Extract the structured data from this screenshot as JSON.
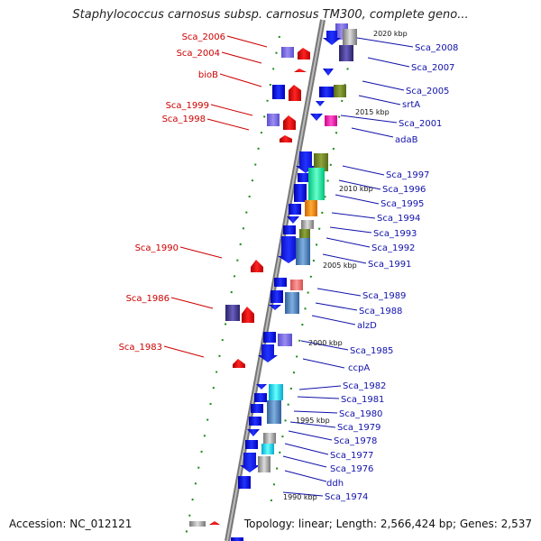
{
  "title": "Staphylococcus carnosus subsp. carnosus TM300, complete geno...",
  "footer": {
    "accession": "Accession: NC_012121",
    "summary": "Topology: linear; Length: 2,566,424 bp; Genes: 2,537"
  },
  "colors": {
    "axis": "#999999",
    "left_label": "#cc0000",
    "right_label": "#1111aa",
    "tick": "#1a8a1a"
  },
  "kbp_markers": [
    "2020 kbp",
    "2015 kbp",
    "2010 kbp",
    "2005 kbp",
    "2000 kbp",
    "1995 kbp",
    "1990 kbp"
  ],
  "left_genes": [
    "Sca_2006",
    "Sca_2004",
    "bioB",
    "Sca_1999",
    "Sca_1998",
    "Sca_1990",
    "Sca_1986",
    "Sca_1983"
  ],
  "right_genes": [
    "Sca_2008",
    "Sca_2007",
    "Sca_2005",
    "srtA",
    "Sca_2001",
    "adaB",
    "Sca_1997",
    "Sca_1996",
    "Sca_1995",
    "Sca_1994",
    "Sca_1993",
    "Sca_1992",
    "Sca_1991",
    "Sca_1989",
    "Sca_1988",
    "alzD",
    "Sca_1985",
    "ccpA",
    "Sca_1982",
    "Sca_1981",
    "Sca_1980",
    "Sca_1979",
    "Sca_1978",
    "Sca_1977",
    "Sca_1976",
    "ddh",
    "Sca_1974"
  ]
}
